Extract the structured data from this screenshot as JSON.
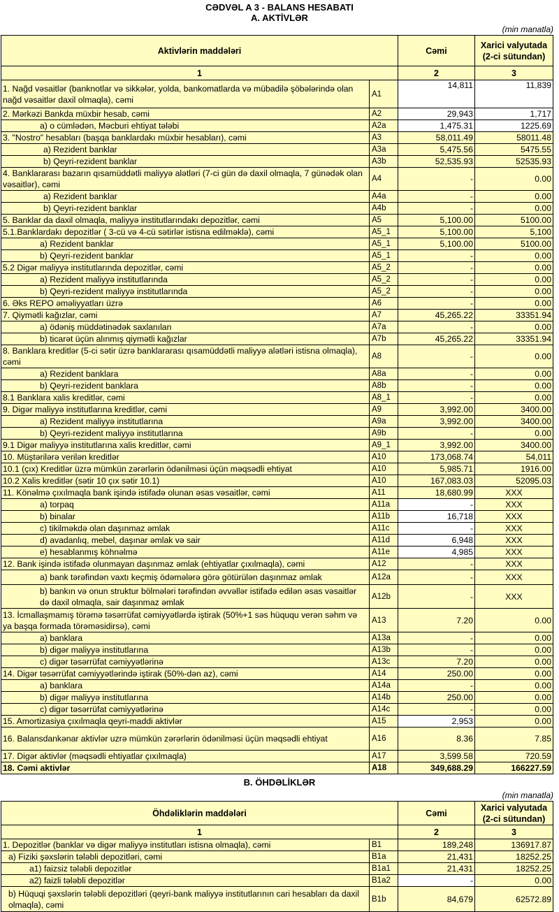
{
  "title": "CƏDVƏL A 3 - BALANS HESABATI",
  "section_a": {
    "heading": "A. AKTİVLƏR",
    "unit": "(min manatla)",
    "headers": {
      "items": "Aktivlərin   maddələri",
      "total": "Cəmi",
      "fx": "Xarici valyutada (2-ci sütundan)"
    },
    "colnums": [
      "1",
      "2",
      "3"
    ],
    "rows": [
      {
        "label": "1. Nağd vəsaitlər (banknotlar və sikkələr, yolda, bankomatlarda və mübadilə şöbələrində olan nağd vəsaitlər daxil olmaqla), cəmi",
        "code": "A1",
        "total": "14,811",
        "fx": "11,839"
      },
      {
        "label": "2. Mərkəzi Bankda müxbir hesab, cəmi",
        "code": "A2",
        "total": "29,943",
        "fx": "1,717"
      },
      {
        "label": "a) o cümlədən, Məcburi ehtiyat tələbi",
        "code": "A2a",
        "total": "1,475.31",
        "fx": "1225.69"
      },
      {
        "label": "3. \"Nostro\" hesabları (başqa banklardakı müxbir hesabları), cəmi",
        "code": "A3",
        "total": "58,011.49",
        "fx": "58011.48"
      },
      {
        "label": "a) Rezident banklar",
        "code": "A3a",
        "total": "5,475.56",
        "fx": "5475.55"
      },
      {
        "label": "b) Qeyri-rezident banklar",
        "code": "A3b",
        "total": "52,535.93",
        "fx": "52535.93"
      },
      {
        "label": "4. Banklararası bazarın qısamüddətli maliyyə alətləri (7-ci gün də daxil olmaqla, 7 günədək olan vəsaitlər), cəmi",
        "code": "A4",
        "total": "-",
        "fx": "0.00"
      },
      {
        "label": "a) Rezident banklar",
        "code": "A4a",
        "total": "-",
        "fx": "0.00"
      },
      {
        "label": "b) Qeyri-rezident banklar",
        "code": "A4b",
        "total": "-",
        "fx": "0.00"
      },
      {
        "label": "5. Banklar da daxil olmaqla, maliyyə institutlarındakı depozitlər, cəmi",
        "code": "A5",
        "total": "5,100.00",
        "fx": "5100.00"
      },
      {
        "label": "5.1.Banklardakı depozitlər ( 3-cü və 4-cü sətirlər istisna edilməklə), cəmi",
        "code": "A5_1",
        "total": "5,100.00",
        "fx": "5,100"
      },
      {
        "label": "a) Rezident banklar",
        "code": "A5_1",
        "total": "5,100.00",
        "fx": "5100.00"
      },
      {
        "label": "b) Qeyri-rezident banklar",
        "code": "A5_1",
        "total": "-",
        "fx": "0.00"
      },
      {
        "label": "5.2 Digər maliyyə institutlarında depozitlər, cəmi",
        "code": "A5_2",
        "total": "-",
        "fx": "0.00"
      },
      {
        "label": "a) Rezident maliyyə institutlarında",
        "code": "A5_2",
        "total": "-",
        "fx": "0.00"
      },
      {
        "label": "b) Qeyri-rezident maliyyə institutlarında",
        "code": "A5_2",
        "total": "-",
        "fx": "0.00"
      },
      {
        "label": "6. Əks REPO əməliyyatları üzrə",
        "code": "A6",
        "total": "-",
        "fx": "0.00"
      },
      {
        "label": "7. Qiymətli kağızlar, cəmi",
        "code": "A7",
        "total": "45,265.22",
        "fx": "33351.94"
      },
      {
        "label": "a) ödəniş müddətinədək saxlanılan",
        "code": "A7a",
        "total": "-",
        "fx": "0.00"
      },
      {
        "label": "b) ticarət üçün alınmış qiymətli kağızlar",
        "code": "A7b",
        "total": "45,265.22",
        "fx": "33351.94"
      },
      {
        "label": "8. Banklara kreditlər (5-ci sətir üzrə banklararası qısamüddətli maliyyə alətləri istisna olmaqla), cəmi",
        "code": "A8",
        "total": "-",
        "fx": "0.00"
      },
      {
        "label": "a) Rezident banklara",
        "code": "A8a",
        "total": "-",
        "fx": "0.00"
      },
      {
        "label": "b) Qeyri-rezident banklara",
        "code": "A8b",
        "total": "-",
        "fx": "0.00"
      },
      {
        "label": "8.1 Banklara xalis kreditlər, cəmi",
        "code": "A8_1",
        "total": "-",
        "fx": "0.00"
      },
      {
        "label": "9. Digər maliyyə institutlarına kreditlər, cəmi",
        "code": "A9",
        "total": "3,992.00",
        "fx": "3400.00"
      },
      {
        "label": "a) Rezident maliyyə institutlarına",
        "code": "A9a",
        "total": "3,992.00",
        "fx": "3400.00"
      },
      {
        "label": "b) Qeyri-rezident maliyyə institutlarına",
        "code": "A9b",
        "total": "-",
        "fx": "0.00"
      },
      {
        "label": "9.1 Digər maliyyə institutlarına xalis kreditlər, cəmi",
        "code": "A9_1",
        "total": "3,992.00",
        "fx": "3400.00"
      },
      {
        "label": "10. Müştərilərə verilən kreditlər",
        "code": "A10",
        "total": "173,068.74",
        "fx": "54,011"
      },
      {
        "label": "10.1 (çıx) Kreditlər üzrə mümkün zərərlərin ödənilməsi üçün məqsədli ehtiyat",
        "code": "A10",
        "total": "5,985.71",
        "fx": "1916.00"
      },
      {
        "label": "10.2 Xalis kreditlər (sətir 10 çıx sətir 10.1)",
        "code": "A10",
        "total": "167,083.03",
        "fx": "52095.03"
      },
      {
        "label": "11. Könəlmə çıxılmaqla bank işində istifadə olunan əsas vəsaitlər, cəmi",
        "code": "A11",
        "total": "18,680.99",
        "fx": "XXX"
      },
      {
        "label": "a) torpaq",
        "code": "A11a",
        "total": "-",
        "fx": "XXX"
      },
      {
        "label": "b) binalar",
        "code": "A11b",
        "total": "16,718",
        "fx": "XXX"
      },
      {
        "label": "c) tikilməkdə olan daşınmaz əmlak",
        "code": "A11c",
        "total": "-",
        "fx": "XXX"
      },
      {
        "label": "d) avadanlıq, mebel, daşınar əmlak və sair",
        "code": "A11d",
        "total": "6,948",
        "fx": "XXX"
      },
      {
        "label": "e) hesablanmış köhnəlmə",
        "code": "A11e",
        "total": "4,985",
        "fx": "XXX"
      },
      {
        "label": "12. Bank işində istifadə olunmayan daşınmaz əmlak (ehtiyatlar çıxılmaqla), cəmi",
        "code": "A12",
        "total": "-",
        "fx": "XXX"
      },
      {
        "label": "a) bank tərəfindən vaxtı keçmiş ödəmələrə görə götürülən daşınmaz əmlak",
        "code": "A12a",
        "total": "-",
        "fx": "XXX"
      },
      {
        "label": "b) bankın və onun struktur bölmələri tərəfindən əvvəllər istifadə edilən əsas vəsaitlər də daxil olmaqla, sair daşınmaz əmlak",
        "code": "A12b",
        "total": "-",
        "fx": "XXX"
      },
      {
        "label": "13. İcmallaşmamış törəmə təsərrüfat cəmiyyətlərdə iştirak (50%+1 səs hüququ verən səhm və ya başqa formada törəməsidirsə), cəmi",
        "code": "A13",
        "total": "7.20",
        "fx": "0.00"
      },
      {
        "label": "a) banklara",
        "code": "A13a",
        "total": "-",
        "fx": "0.00"
      },
      {
        "label": "b) digər maliyyə institutlarına",
        "code": "A13b",
        "total": "-",
        "fx": "0.00"
      },
      {
        "label": "c) digər təsərrüfat cəmiyyətlərinə",
        "code": "A13c",
        "total": "7.20",
        "fx": "0.00"
      },
      {
        "label": "14. Digər təsərrüfat cəmiyyətlərində iştirak (50%-dən az), cəmi",
        "code": "A14",
        "total": "250.00",
        "fx": "0.00"
      },
      {
        "label": "a) banklara",
        "code": "A14a",
        "total": "-",
        "fx": "0.00"
      },
      {
        "label": "b) digər maliyyə institutlarına",
        "code": "A14b",
        "total": "250.00",
        "fx": "0.00"
      },
      {
        "label": "c) digər təsərrüfat cəmiyyətlərinə",
        "code": "A14c",
        "total": "-",
        "fx": "0.00"
      },
      {
        "label": "15. Amortizasiya çıxılmaqla qeyri-maddi aktivlər",
        "code": "A15",
        "total": "2,953",
        "fx": "0.00"
      },
      {
        "label": "16. Balansdankənar aktivlər uzrə mümkün zərərlərin ödənilməsi üçün məqsədli ehtiyat",
        "code": "A16",
        "total": "8.36",
        "fx": "7.85"
      },
      {
        "label": "17. Digər aktivlər (məqsədli ehtiyatlar çıxılmaqla)",
        "code": "A17",
        "total": "3,599.58",
        "fx": "720.59"
      },
      {
        "label": "18. Cəmi aktivlər",
        "code": "A18",
        "total": "349,688.29",
        "fx": "166227.59"
      }
    ]
  },
  "section_b": {
    "heading": "B. ÖHDƏLİKLƏR",
    "unit": "(min manatla)",
    "headers": {
      "items": "Öhdəliklərin maddələri",
      "total": "Cəmi",
      "fx": "Xarici valyutada (2-ci sütundan)"
    },
    "colnums": [
      "1",
      "2",
      "3"
    ],
    "rows": [
      {
        "label": "1. Depozitlər (banklar və digər maliyyə institutları istisna olmaqla), cəmi",
        "code": "B1",
        "total": "189,248",
        "fx": "136917.87"
      },
      {
        "label": "a)  Fiziki şəxslərin tələbli depozitləri, cəmi",
        "code": "B1a",
        "total": "21,431",
        "fx": "18252.25"
      },
      {
        "label": "a1) faizsiz tələbli depozitlər",
        "code": "B1a1",
        "total": "21,431",
        "fx": "18252.25"
      },
      {
        "label": "a2) faizli tələbli depozitlər",
        "code": "B1a2",
        "total": "-",
        "fx": "0.00"
      },
      {
        "label": "b) Hüquqi şəxslərin tələbli depozitləri (qeyri-bank maliyyə institutlarının cari hesabları da daxil olmaqla), cəmi",
        "code": "B1b",
        "total": "84,679",
        "fx": "62572.89"
      }
    ]
  }
}
